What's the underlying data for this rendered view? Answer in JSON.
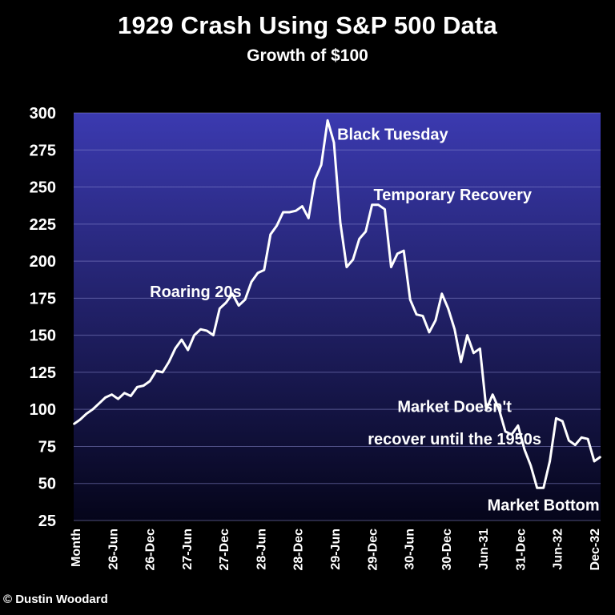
{
  "header": {
    "title": "1929 Crash Using S&P 500 Data",
    "subtitle": "Growth of $100"
  },
  "footer": {
    "credit": "© Dustin Woodard"
  },
  "colors": {
    "background": "#000000",
    "plot_top": "#3b3ab0",
    "plot_bottom": "#05051a",
    "line": "#ffffff",
    "grid": "#8a8ad0"
  },
  "chart_data": {
    "type": "line",
    "title": "1929 Crash Using S&P 500 Data",
    "subtitle": "Growth of $100",
    "xlabel": "",
    "ylabel": "",
    "ylim": [
      25,
      300
    ],
    "yticks": [
      "300",
      "275",
      "250",
      "225",
      "200",
      "175",
      "150",
      "125",
      "100",
      "75",
      "50",
      "25"
    ],
    "xticks": [
      "Month",
      "26-Jun",
      "26-Dec",
      "27-Jun",
      "27-Dec",
      "28-Jun",
      "28-Dec",
      "29-Jun",
      "29-Dec",
      "30-Jun",
      "30-Dec",
      "Jun-31",
      "31-Dec",
      "Jun-32",
      "Dec-32"
    ],
    "grid": true,
    "legend": "none",
    "series": [
      {
        "values": [
          90,
          93,
          97,
          100,
          104,
          108,
          110,
          107,
          111,
          109,
          115,
          116,
          119,
          126,
          125,
          132,
          141,
          147,
          140,
          150,
          154,
          153,
          150,
          168,
          172,
          178,
          170,
          174,
          186,
          192,
          194,
          218,
          224,
          233,
          233,
          234,
          237,
          229,
          255,
          265,
          295,
          280,
          226,
          196,
          201,
          215,
          220,
          238,
          238,
          235,
          196,
          205,
          207,
          174,
          164,
          163,
          152,
          160,
          178,
          168,
          154,
          132,
          150,
          138,
          141,
          100,
          110,
          100,
          85,
          83,
          89,
          73,
          62,
          47,
          47,
          65,
          94,
          92,
          79,
          76,
          81,
          80,
          65,
          68
        ]
      }
    ],
    "annotations": [
      {
        "text": "Black Tuesday",
        "x_index": 40,
        "y": 295
      },
      {
        "text": "Temporary Recovery",
        "x_index": 48,
        "y": 238
      },
      {
        "text": "Roaring 20s",
        "x_index": 12,
        "y": 178
      },
      {
        "text": "Market Doesn't",
        "x_index": 60,
        "y": 97
      },
      {
        "text": "recover until the 1950s",
        "x_index": 60,
        "y": 72
      },
      {
        "text": "Market Bottom",
        "x_index": 74,
        "y": 47
      }
    ]
  }
}
